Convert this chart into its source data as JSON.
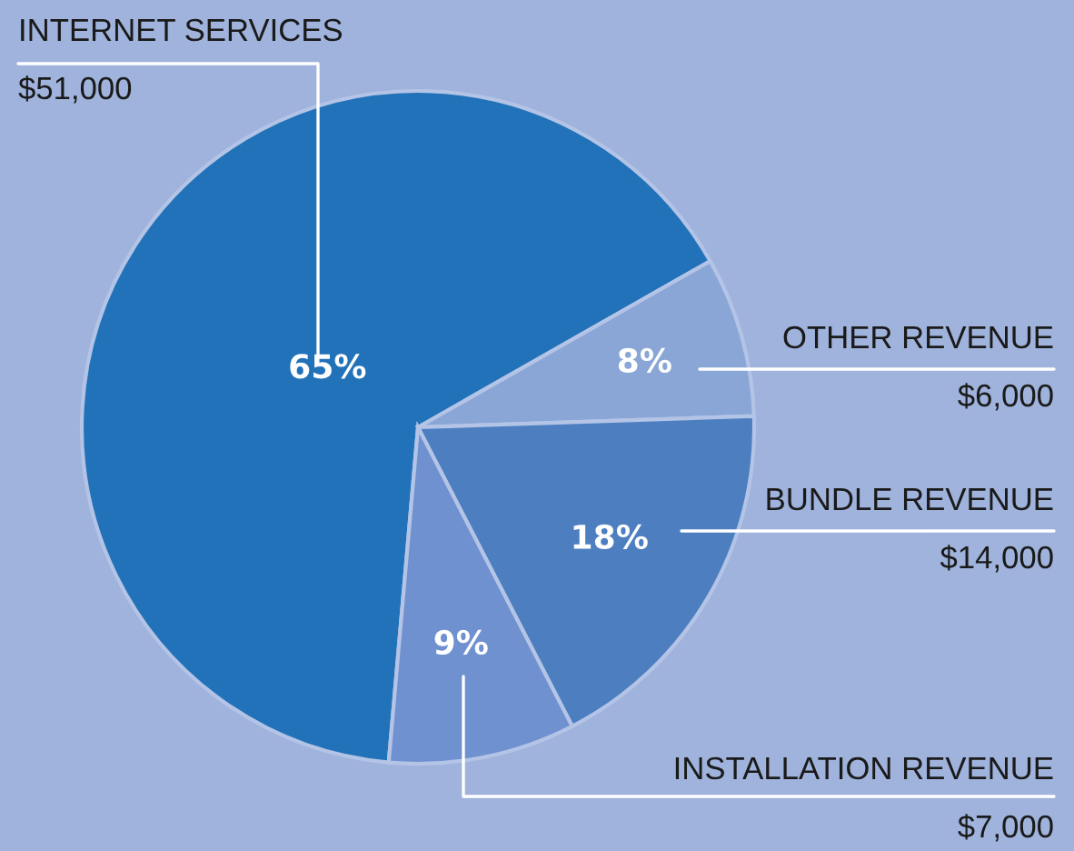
{
  "chart_data": {
    "type": "pie",
    "categories": [
      "INTERNET SERVICES",
      "OTHER REVENUE",
      "BUNDLE REVENUE",
      "INSTALLATION REVENUE"
    ],
    "values": [
      51000,
      6000,
      14000,
      7000
    ],
    "colors": [
      "#2272b9",
      "#8aa6d6",
      "#4d7fc0",
      "#6f91cf"
    ],
    "value_labels": [
      "$51,000",
      "$6,000",
      "$14,000",
      "$7,000"
    ],
    "annotations": [
      {
        "text": "65%",
        "x": "INTERNET SERVICES"
      },
      {
        "text": "8%",
        "x": "OTHER REVENUE"
      },
      {
        "text": "18%",
        "x": "BUNDLE REVENUE"
      },
      {
        "text": "9%",
        "x": "INSTALLATION REVENUE"
      }
    ]
  }
}
